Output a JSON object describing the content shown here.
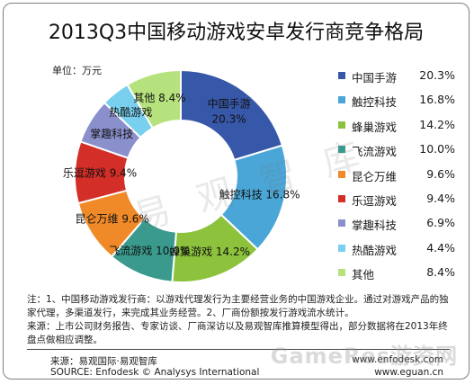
{
  "title": "2013Q3中国移动游戏安卓发行商竞争格局",
  "unit_label": "单位：万元",
  "colors": [
    "#3757a8",
    "#4aa6d6",
    "#8cc23c",
    "#3a9a8d",
    "#f08a28",
    "#d32e27",
    "#8a90cc",
    "#79d0ee",
    "#b6e27d"
  ],
  "legend": [
    {
      "name": "中国手游",
      "value": "20.3%"
    },
    {
      "name": "触控科技",
      "value": "16.8%"
    },
    {
      "name": "蜂巢游戏",
      "value": "14.2%"
    },
    {
      "name": "飞流游戏",
      "value": "10.0%"
    },
    {
      "name": "昆仑万维",
      "value": "9.6%"
    },
    {
      "name": "乐逗游戏",
      "value": "9.4%"
    },
    {
      "name": "掌趣科技",
      "value": "6.9%"
    },
    {
      "name": "热酷游戏",
      "value": "4.4%"
    },
    {
      "name": "其他",
      "value": "8.4%"
    }
  ],
  "chart_data": {
    "type": "pie",
    "variant": "donut",
    "title": "2013Q3中国移动游戏安卓发行商竞争格局",
    "unit": "万元",
    "categories": [
      "中国手游",
      "触控科技",
      "蜂巢游戏",
      "飞流游戏",
      "昆仑万维",
      "乐逗游戏",
      "掌趣科技",
      "热酷游戏",
      "其他"
    ],
    "values": [
      20.3,
      16.8,
      14.2,
      10.0,
      9.6,
      9.4,
      6.9,
      4.4,
      8.4
    ],
    "legend_position": "right"
  },
  "slice_labels": [
    {
      "name": "中国手游",
      "value": "20.3%"
    },
    {
      "name": "触控科技",
      "value": "16.8%"
    },
    {
      "name": "蜂巢游戏",
      "value": "14.2%"
    },
    {
      "name": "飞流游戏",
      "value": "10.0%"
    },
    {
      "name": "昆仑万维",
      "value": "9.6%"
    },
    {
      "name": "乐逗游戏",
      "value": "9.4%"
    },
    {
      "name": "掌趣科技",
      "value": ""
    },
    {
      "name": "热酷游戏",
      "value": ""
    },
    {
      "name": "其他",
      "value": "8.4%"
    }
  ],
  "note": "注：1、中国移动游戏发行商：以游戏代理发行为主要经营业务的中国游戏企业。通过对游戏产品的独家代理，多渠道发行，来完成其业务经营。2、厂商份额按发行游戏流水统计。",
  "source_note": "来源：上市公司财务报告、专家访谈、厂商深访以及易观智库推算模型得出，部分数据将在2013年终盘点做相应调整。",
  "footer": {
    "source_cn": "来源：易观国际·易观智库",
    "source_en": "SOURCE: Enfodesk © Analysys International",
    "url1": "www.enfodesk.com",
    "url2": "www.eguan.cn"
  },
  "watermarks": {
    "cn": "易 观 智 库",
    "site": "GameRes游资网"
  }
}
